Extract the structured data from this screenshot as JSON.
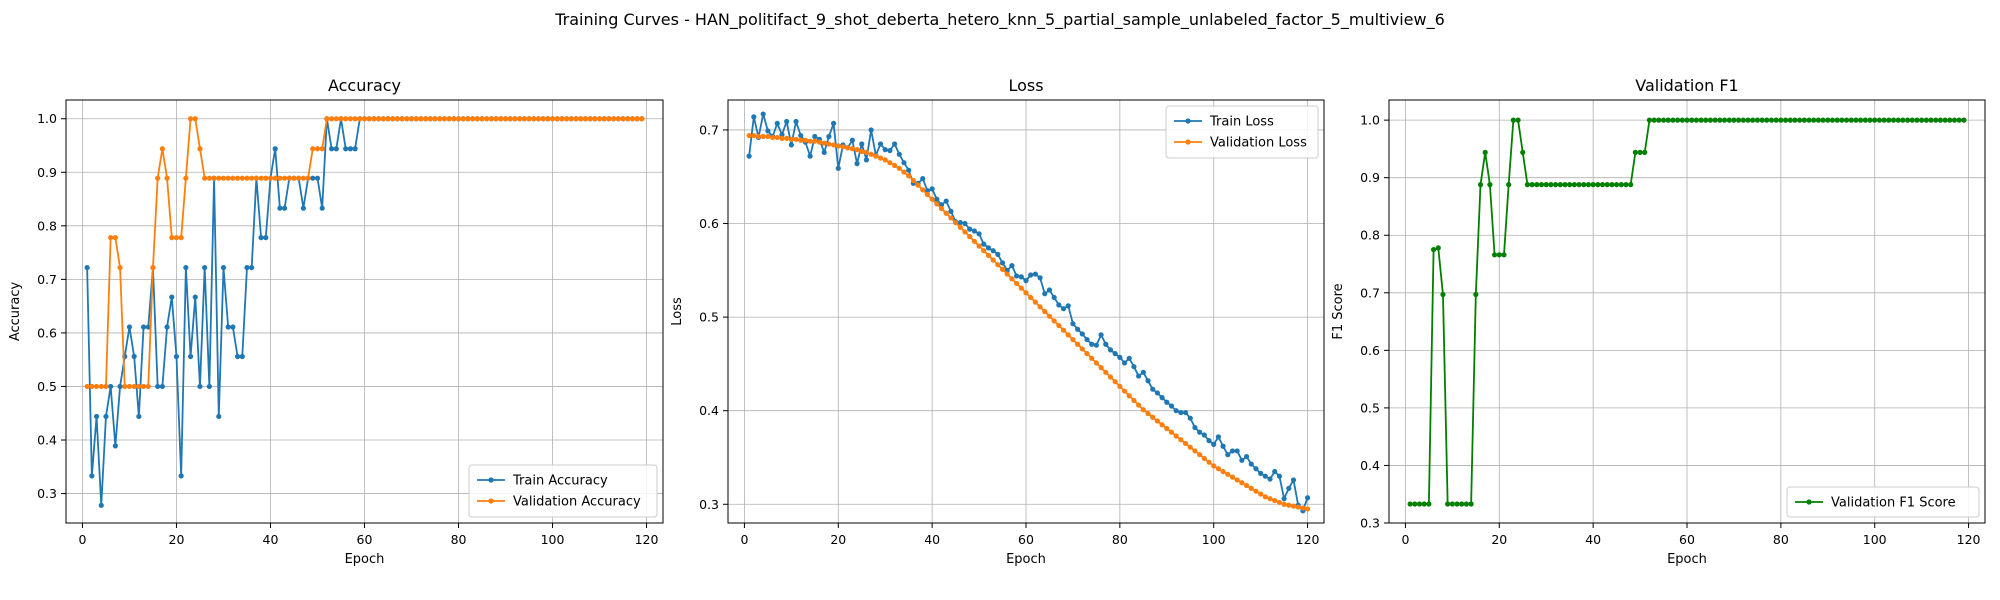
{
  "suptitle": "Training Curves - HAN_politifact_9_shot_deberta_hetero_knn_5_partial_sample_unlabeled_factor_5_multiview_6",
  "chart_data": [
    {
      "type": "line",
      "title": "Accuracy",
      "xlabel": "Epoch",
      "ylabel": "Accuracy",
      "xlim": [
        -3.5,
        123.5
      ],
      "ylim": [
        0.245,
        1.035
      ],
      "xticks": [
        0,
        20,
        40,
        60,
        80,
        100,
        120
      ],
      "yticks": [
        0.3,
        0.4,
        0.5,
        0.6,
        0.7,
        0.8,
        0.9,
        1.0
      ],
      "ytick_labels": [
        "0.3",
        "0.4",
        "0.5",
        "0.6",
        "0.7",
        "0.8",
        "0.9",
        "1.0"
      ],
      "grid": true,
      "legend_position": "lower-right",
      "x_start": 1,
      "series": [
        {
          "name": "Train Accuracy",
          "color": "#1f77b4",
          "values": [
            0.722,
            0.333,
            0.444,
            0.278,
            0.444,
            0.5,
            0.389,
            0.5,
            0.556,
            0.611,
            0.556,
            0.444,
            0.611,
            0.611,
            0.722,
            0.5,
            0.5,
            0.611,
            0.667,
            0.556,
            0.333,
            0.722,
            0.556,
            0.667,
            0.5,
            0.722,
            0.5,
            0.889,
            0.444,
            0.722,
            0.611,
            0.611,
            0.556,
            0.556,
            0.722,
            0.722,
            0.889,
            0.778,
            0.778,
            0.889,
            0.944,
            0.833,
            0.833,
            0.889,
            0.889,
            0.889,
            0.833,
            0.889,
            0.889,
            0.889,
            0.833,
            1.0,
            0.944,
            0.944,
            1.0,
            0.944,
            0.944,
            0.944,
            1.0,
            1.0,
            1.0,
            1.0,
            1.0,
            1.0,
            1.0,
            1.0,
            1.0,
            1.0,
            1.0,
            1.0,
            1.0,
            1.0,
            1.0,
            1.0,
            1.0,
            1.0,
            1.0,
            1.0,
            1.0,
            1.0,
            1.0,
            1.0,
            1.0,
            1.0,
            1.0,
            1.0,
            1.0,
            1.0,
            1.0,
            1.0,
            1.0,
            1.0,
            1.0,
            1.0,
            1.0,
            1.0,
            1.0,
            1.0,
            1.0,
            1.0,
            1.0,
            1.0,
            1.0,
            1.0,
            1.0,
            1.0,
            1.0,
            1.0,
            1.0,
            1.0,
            1.0,
            1.0,
            1.0,
            1.0,
            1.0,
            1.0,
            1.0,
            1.0,
            1.0
          ]
        },
        {
          "name": "Validation Accuracy",
          "color": "#ff7f0e",
          "values": [
            0.5,
            0.5,
            0.5,
            0.5,
            0.5,
            0.778,
            0.778,
            0.722,
            0.5,
            0.5,
            0.5,
            0.5,
            0.5,
            0.5,
            0.722,
            0.889,
            0.944,
            0.889,
            0.778,
            0.778,
            0.778,
            0.889,
            1.0,
            1.0,
            0.944,
            0.889,
            0.889,
            0.889,
            0.889,
            0.889,
            0.889,
            0.889,
            0.889,
            0.889,
            0.889,
            0.889,
            0.889,
            0.889,
            0.889,
            0.889,
            0.889,
            0.889,
            0.889,
            0.889,
            0.889,
            0.889,
            0.889,
            0.889,
            0.944,
            0.944,
            0.944,
            1.0,
            1.0,
            1.0,
            1.0,
            1.0,
            1.0,
            1.0,
            1.0,
            1.0,
            1.0,
            1.0,
            1.0,
            1.0,
            1.0,
            1.0,
            1.0,
            1.0,
            1.0,
            1.0,
            1.0,
            1.0,
            1.0,
            1.0,
            1.0,
            1.0,
            1.0,
            1.0,
            1.0,
            1.0,
            1.0,
            1.0,
            1.0,
            1.0,
            1.0,
            1.0,
            1.0,
            1.0,
            1.0,
            1.0,
            1.0,
            1.0,
            1.0,
            1.0,
            1.0,
            1.0,
            1.0,
            1.0,
            1.0,
            1.0,
            1.0,
            1.0,
            1.0,
            1.0,
            1.0,
            1.0,
            1.0,
            1.0,
            1.0,
            1.0,
            1.0,
            1.0,
            1.0,
            1.0,
            1.0,
            1.0,
            1.0,
            1.0,
            1.0
          ]
        }
      ]
    },
    {
      "type": "line",
      "title": "Loss",
      "xlabel": "Epoch",
      "ylabel": "Loss",
      "xlim": [
        -3.5,
        123.5
      ],
      "ylim": [
        0.28,
        0.732
      ],
      "xticks": [
        0,
        20,
        40,
        60,
        80,
        100,
        120
      ],
      "yticks": [
        0.3,
        0.4,
        0.5,
        0.6,
        0.7
      ],
      "ytick_labels": [
        "0.3",
        "0.4",
        "0.5",
        "0.6",
        "0.7"
      ],
      "grid": true,
      "legend_position": "top-right",
      "x_start": 1,
      "series": [
        {
          "name": "Train Loss",
          "color": "#1f77b4",
          "values": [
            0.672,
            0.714,
            0.692,
            0.717,
            0.699,
            0.693,
            0.707,
            0.695,
            0.709,
            0.684,
            0.709,
            0.694,
            0.687,
            0.672,
            0.693,
            0.69,
            0.676,
            0.693,
            0.707,
            0.659,
            0.684,
            0.681,
            0.689,
            0.664,
            0.685,
            0.668,
            0.7,
            0.673,
            0.685,
            0.679,
            0.678,
            0.685,
            0.674,
            0.665,
            0.657,
            0.643,
            0.643,
            0.648,
            0.635,
            0.637,
            0.626,
            0.62,
            0.624,
            0.613,
            0.602,
            0.601,
            0.6,
            0.594,
            0.592,
            0.589,
            0.578,
            0.574,
            0.571,
            0.567,
            0.558,
            0.55,
            0.555,
            0.544,
            0.543,
            0.539,
            0.545,
            0.546,
            0.542,
            0.525,
            0.529,
            0.521,
            0.513,
            0.509,
            0.512,
            0.493,
            0.487,
            0.482,
            0.476,
            0.471,
            0.47,
            0.481,
            0.471,
            0.465,
            0.461,
            0.457,
            0.451,
            0.456,
            0.447,
            0.437,
            0.441,
            0.432,
            0.423,
            0.419,
            0.414,
            0.409,
            0.405,
            0.4,
            0.398,
            0.398,
            0.392,
            0.382,
            0.377,
            0.374,
            0.368,
            0.364,
            0.372,
            0.362,
            0.353,
            0.357,
            0.357,
            0.347,
            0.351,
            0.343,
            0.338,
            0.333,
            0.33,
            0.327,
            0.335,
            0.33,
            0.306,
            0.317,
            0.326,
            0.299,
            0.293,
            0.307
          ]
        },
        {
          "name": "Validation Loss",
          "color": "#ff7f0e",
          "values": [
            0.694,
            0.694,
            0.693,
            0.693,
            0.693,
            0.692,
            0.692,
            0.691,
            0.691,
            0.69,
            0.69,
            0.689,
            0.689,
            0.688,
            0.688,
            0.687,
            0.686,
            0.685,
            0.684,
            0.683,
            0.682,
            0.681,
            0.68,
            0.679,
            0.677,
            0.676,
            0.674,
            0.672,
            0.67,
            0.668,
            0.665,
            0.662,
            0.659,
            0.655,
            0.651,
            0.646,
            0.641,
            0.636,
            0.631,
            0.626,
            0.621,
            0.616,
            0.611,
            0.606,
            0.601,
            0.596,
            0.591,
            0.586,
            0.581,
            0.576,
            0.571,
            0.566,
            0.561,
            0.556,
            0.551,
            0.546,
            0.541,
            0.536,
            0.531,
            0.526,
            0.521,
            0.516,
            0.511,
            0.506,
            0.501,
            0.496,
            0.491,
            0.486,
            0.481,
            0.476,
            0.471,
            0.466,
            0.461,
            0.456,
            0.451,
            0.446,
            0.441,
            0.436,
            0.431,
            0.426,
            0.421,
            0.416,
            0.411,
            0.406,
            0.401,
            0.397,
            0.393,
            0.389,
            0.385,
            0.381,
            0.377,
            0.373,
            0.369,
            0.365,
            0.361,
            0.357,
            0.353,
            0.349,
            0.345,
            0.341,
            0.338,
            0.335,
            0.332,
            0.329,
            0.326,
            0.323,
            0.32,
            0.317,
            0.314,
            0.311,
            0.308,
            0.306,
            0.304,
            0.302,
            0.3,
            0.299,
            0.298,
            0.297,
            0.296,
            0.295
          ]
        }
      ]
    },
    {
      "type": "line",
      "title": "Validation F1",
      "xlabel": "Epoch",
      "ylabel": "F1 Score",
      "xlim": [
        -3.5,
        123.5
      ],
      "ylim": [
        0.3,
        1.035
      ],
      "xticks": [
        0,
        20,
        40,
        60,
        80,
        100,
        120
      ],
      "yticks": [
        0.3,
        0.4,
        0.5,
        0.6,
        0.7,
        0.8,
        0.9,
        1.0
      ],
      "ytick_labels": [
        "0.3",
        "0.4",
        "0.5",
        "0.6",
        "0.7",
        "0.8",
        "0.9",
        "1.0"
      ],
      "grid": true,
      "legend_position": "lower-right",
      "x_start": 1,
      "series": [
        {
          "name": "Validation F1 Score",
          "color": "#008000",
          "values": [
            0.333,
            0.333,
            0.333,
            0.333,
            0.333,
            0.775,
            0.778,
            0.697,
            0.333,
            0.333,
            0.333,
            0.333,
            0.333,
            0.333,
            0.697,
            0.888,
            0.944,
            0.888,
            0.766,
            0.766,
            0.766,
            0.888,
            1.0,
            1.0,
            0.944,
            0.888,
            0.888,
            0.888,
            0.888,
            0.888,
            0.888,
            0.888,
            0.888,
            0.888,
            0.888,
            0.888,
            0.888,
            0.888,
            0.888,
            0.888,
            0.888,
            0.888,
            0.888,
            0.888,
            0.888,
            0.888,
            0.888,
            0.888,
            0.944,
            0.944,
            0.944,
            1.0,
            1.0,
            1.0,
            1.0,
            1.0,
            1.0,
            1.0,
            1.0,
            1.0,
            1.0,
            1.0,
            1.0,
            1.0,
            1.0,
            1.0,
            1.0,
            1.0,
            1.0,
            1.0,
            1.0,
            1.0,
            1.0,
            1.0,
            1.0,
            1.0,
            1.0,
            1.0,
            1.0,
            1.0,
            1.0,
            1.0,
            1.0,
            1.0,
            1.0,
            1.0,
            1.0,
            1.0,
            1.0,
            1.0,
            1.0,
            1.0,
            1.0,
            1.0,
            1.0,
            1.0,
            1.0,
            1.0,
            1.0,
            1.0,
            1.0,
            1.0,
            1.0,
            1.0,
            1.0,
            1.0,
            1.0,
            1.0,
            1.0,
            1.0,
            1.0,
            1.0,
            1.0,
            1.0,
            1.0,
            1.0,
            1.0,
            1.0,
            1.0
          ]
        }
      ]
    }
  ]
}
